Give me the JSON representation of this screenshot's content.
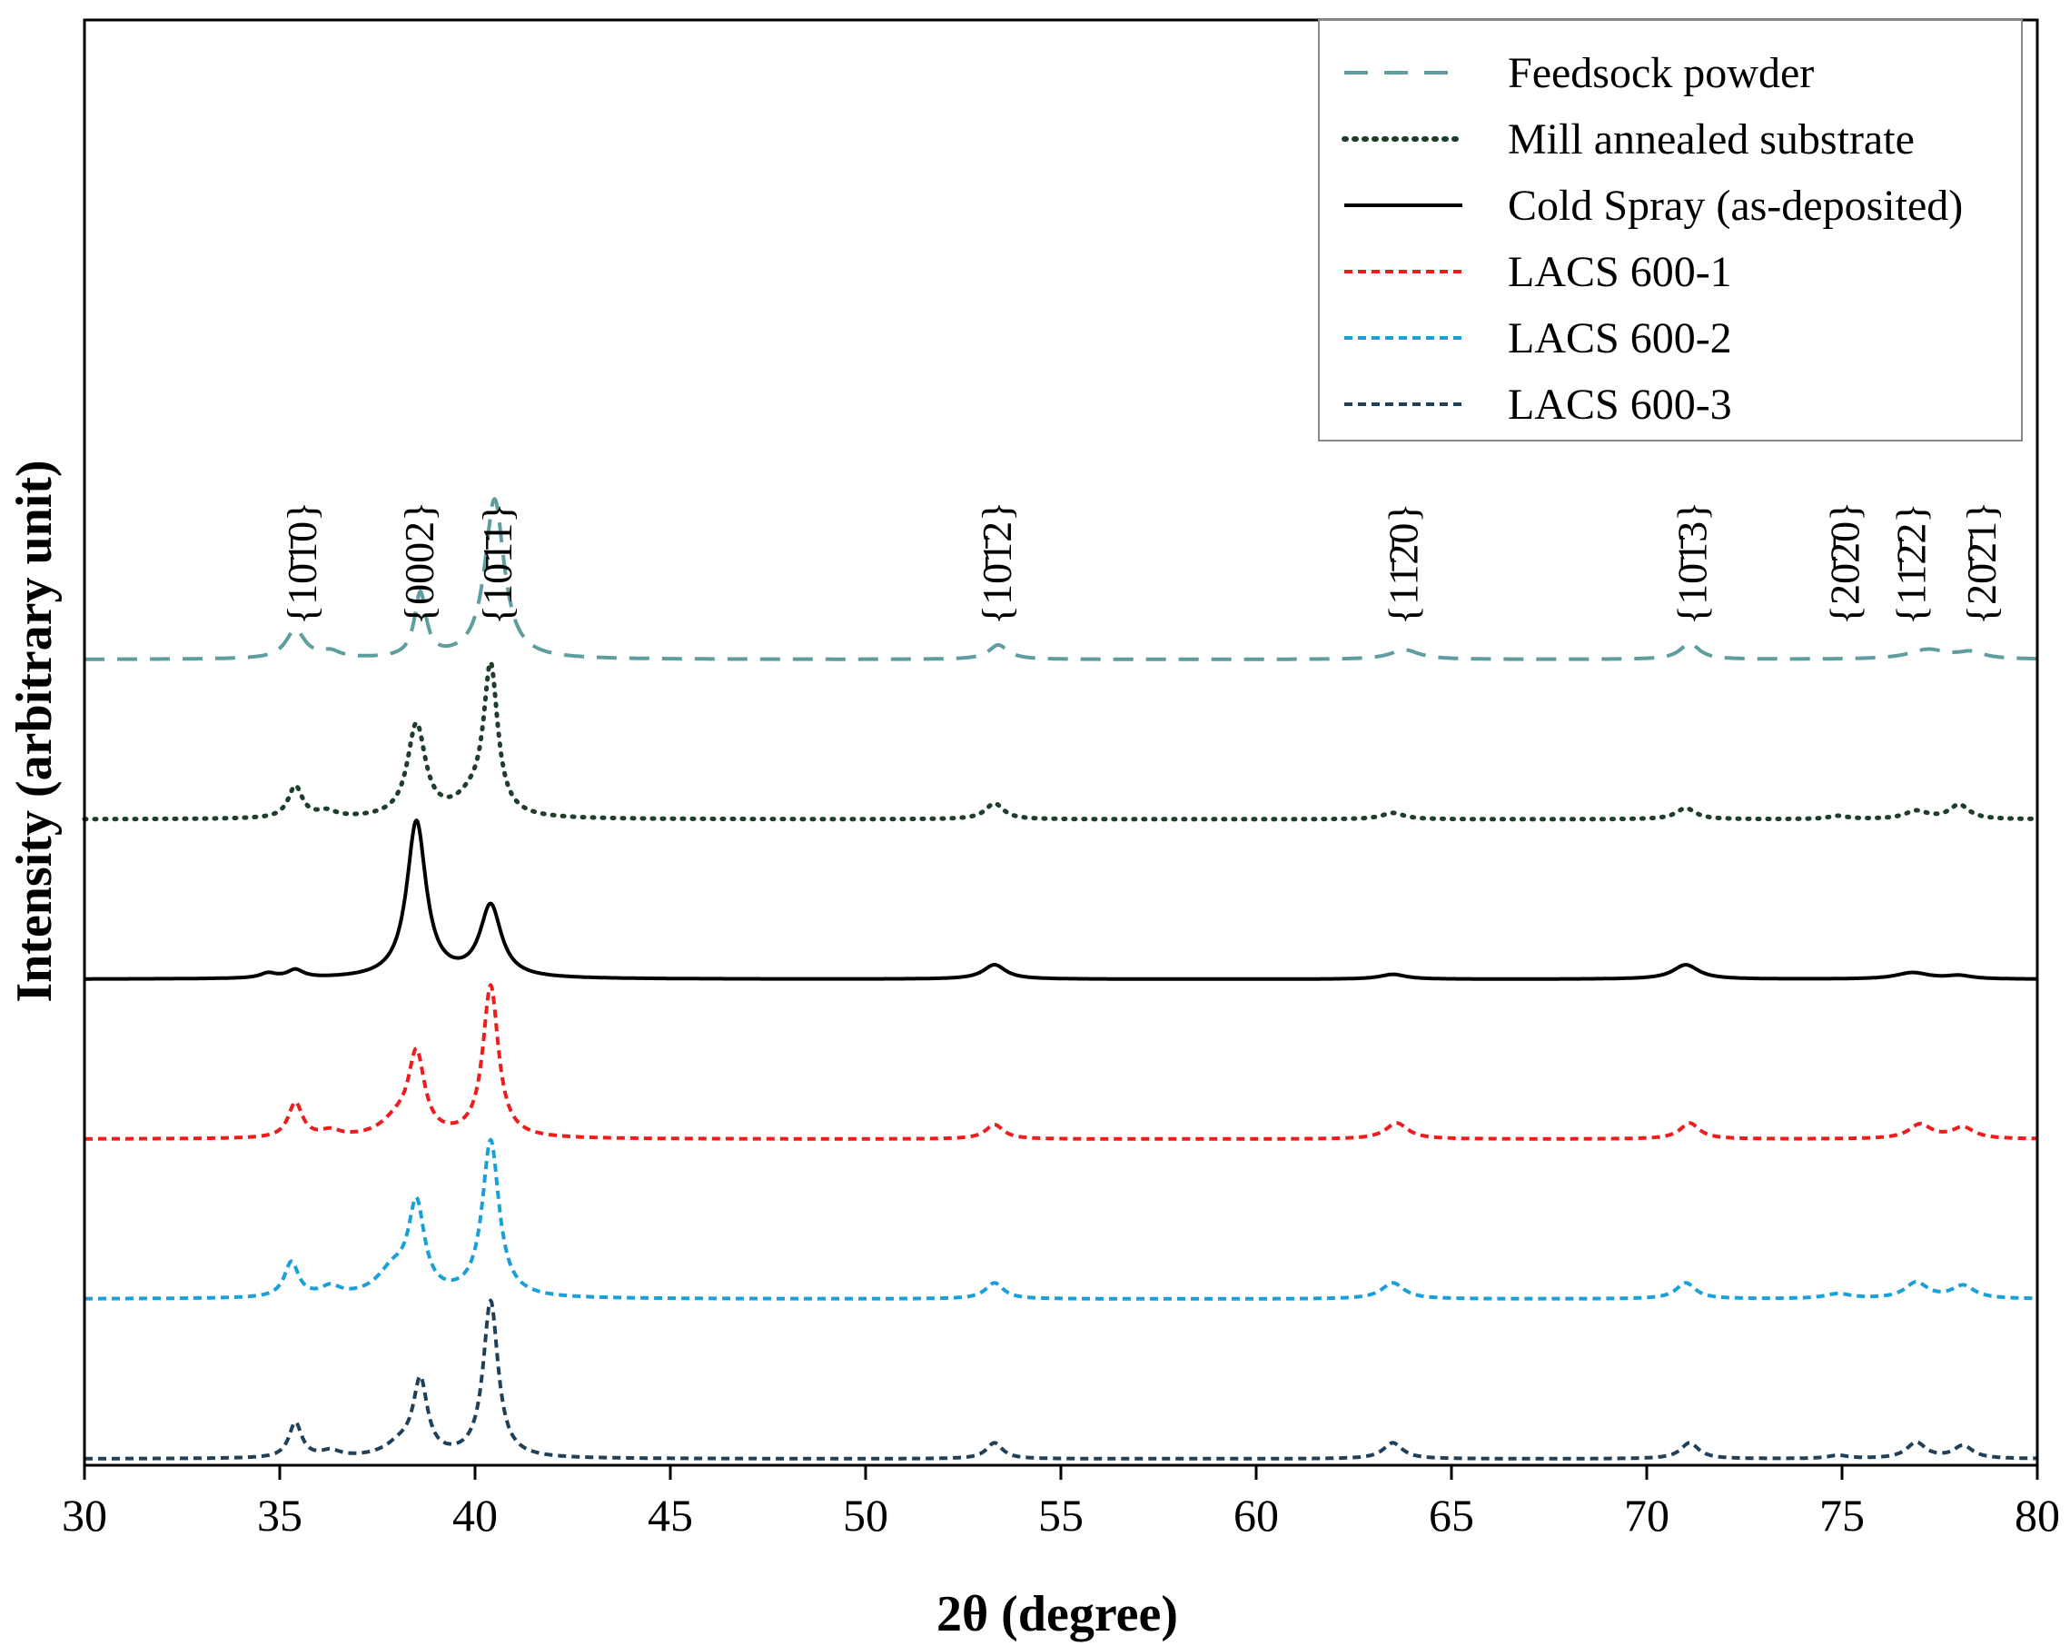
{
  "chart_data": {
    "type": "line",
    "title": "",
    "xlabel": "2θ (degree)",
    "ylabel": "Intensity (arbitrary unit)",
    "xlim": [
      30,
      80
    ],
    "xticks": [
      30,
      35,
      40,
      45,
      50,
      55,
      60,
      65,
      70,
      75,
      80
    ],
    "grid": false,
    "legend_position": "top-right",
    "peak_labels": [
      {
        "hkl": "{10̅1̅0}",
        "text": "{10̄1̄0}",
        "x": 35.6
      },
      {
        "hkl": "{0002}",
        "text": "{0002}",
        "x": 38.6
      },
      {
        "hkl": "{10̄1̄1}",
        "text": "{10̄1̄1}",
        "x": 40.6
      },
      {
        "hkl": "{10̄1̄2}",
        "text": "{10̄1̄2}",
        "x": 53.4
      },
      {
        "hkl": "{11̄2̄0}",
        "text": "{11̄2̄0}",
        "x": 63.8
      },
      {
        "hkl": "{10̄1̄3}",
        "text": "{10̄1̄3}",
        "x": 71.2
      },
      {
        "hkl": "{20̄2̄0}",
        "text": "{20̄2̄0}",
        "x": 75.1
      },
      {
        "hkl": "{11̄2̄2}",
        "text": "{11̄2̄2}",
        "x": 76.8
      },
      {
        "hkl": "{20̄2̄1}",
        "text": "{20̄2̄1}",
        "x": 78.6
      }
    ],
    "series": [
      {
        "name": "Feedsock powder",
        "color": "#5f9ea0",
        "dash": "long",
        "offset": 5,
        "peaks": [
          [
            35.4,
            0.18,
            0.3
          ],
          [
            36.3,
            0.04,
            0.3
          ],
          [
            38.6,
            0.4,
            0.18
          ],
          [
            40.5,
            1.0,
            0.3
          ],
          [
            53.4,
            0.09,
            0.3
          ],
          [
            63.8,
            0.06,
            0.45
          ],
          [
            71.1,
            0.1,
            0.3
          ],
          [
            77.2,
            0.06,
            0.6
          ],
          [
            78.3,
            0.04,
            0.4
          ]
        ]
      },
      {
        "name": "Mill annealed substrate",
        "color": "#1e3d2a",
        "dash": "dotted",
        "offset": 4,
        "peaks": [
          [
            35.4,
            0.2,
            0.22
          ],
          [
            36.2,
            0.04,
            0.3
          ],
          [
            38.5,
            0.58,
            0.28
          ],
          [
            39.9,
            0.1,
            0.5
          ],
          [
            40.4,
            0.92,
            0.22
          ],
          [
            53.3,
            0.1,
            0.28
          ],
          [
            63.5,
            0.04,
            0.35
          ],
          [
            71.0,
            0.07,
            0.3
          ],
          [
            74.9,
            0.02,
            0.3
          ],
          [
            76.9,
            0.05,
            0.35
          ],
          [
            78.0,
            0.09,
            0.3
          ]
        ]
      },
      {
        "name": "Cold Spray (as-deposited)",
        "color": "#000000",
        "dash": "solid",
        "offset": 3,
        "peaks": [
          [
            34.7,
            0.03,
            0.25
          ],
          [
            35.4,
            0.05,
            0.25
          ],
          [
            38.5,
            0.98,
            0.3
          ],
          [
            40.4,
            0.45,
            0.33
          ],
          [
            53.3,
            0.09,
            0.35
          ],
          [
            63.5,
            0.03,
            0.4
          ],
          [
            71.0,
            0.09,
            0.4
          ],
          [
            76.8,
            0.04,
            0.5
          ],
          [
            78.0,
            0.02,
            0.4
          ]
        ]
      },
      {
        "name": "LACS 600-1",
        "color": "#ee1c1c",
        "dash": "short",
        "offset": 2,
        "peaks": [
          [
            35.4,
            0.22,
            0.22
          ],
          [
            36.3,
            0.04,
            0.3
          ],
          [
            38.5,
            0.5,
            0.25
          ],
          [
            38.0,
            0.1,
            0.5
          ],
          [
            40.4,
            0.95,
            0.24
          ],
          [
            53.3,
            0.09,
            0.28
          ],
          [
            63.6,
            0.1,
            0.35
          ],
          [
            71.1,
            0.1,
            0.3
          ],
          [
            77.0,
            0.09,
            0.35
          ],
          [
            78.1,
            0.07,
            0.35
          ]
        ]
      },
      {
        "name": "LACS 600-2",
        "color": "#1aa0d8",
        "dash": "short",
        "offset": 1,
        "peaks": [
          [
            35.3,
            0.22,
            0.22
          ],
          [
            36.3,
            0.06,
            0.3
          ],
          [
            38.5,
            0.55,
            0.25
          ],
          [
            37.9,
            0.16,
            0.5
          ],
          [
            40.4,
            0.98,
            0.26
          ],
          [
            53.3,
            0.1,
            0.28
          ],
          [
            63.5,
            0.1,
            0.35
          ],
          [
            71.0,
            0.1,
            0.3
          ],
          [
            74.9,
            0.03,
            0.4
          ],
          [
            76.9,
            0.1,
            0.35
          ],
          [
            78.1,
            0.08,
            0.35
          ]
        ]
      },
      {
        "name": "LACS 600-3",
        "color": "#1f4058",
        "dash": "short",
        "offset": 0,
        "peaks": [
          [
            35.4,
            0.22,
            0.2
          ],
          [
            36.3,
            0.04,
            0.3
          ],
          [
            38.6,
            0.46,
            0.22
          ],
          [
            38.1,
            0.08,
            0.5
          ],
          [
            40.4,
            0.98,
            0.23
          ],
          [
            53.3,
            0.1,
            0.25
          ],
          [
            63.5,
            0.1,
            0.3
          ],
          [
            71.1,
            0.1,
            0.28
          ],
          [
            74.9,
            0.02,
            0.3
          ],
          [
            76.9,
            0.1,
            0.3
          ],
          [
            78.1,
            0.08,
            0.3
          ]
        ]
      }
    ]
  }
}
